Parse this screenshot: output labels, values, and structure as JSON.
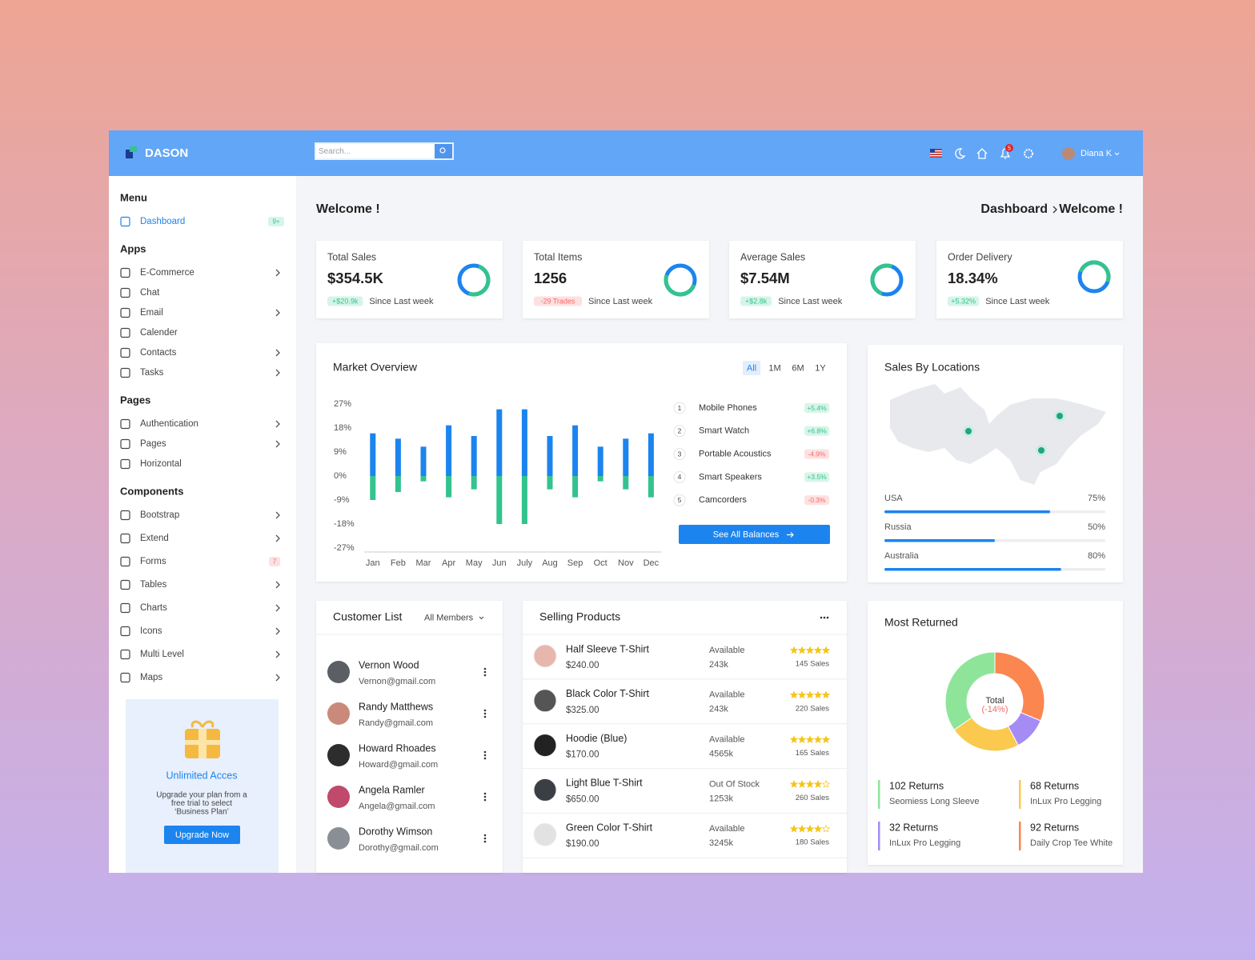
{
  "header": {
    "brand": "DASON",
    "search_placeholder": "Search...",
    "notifications": "5",
    "user": "Diana K"
  },
  "sidebar": {
    "sections": [
      {
        "title": "Menu",
        "items": [
          {
            "label": "Dashboard",
            "badge": "9+",
            "active": true
          }
        ]
      },
      {
        "title": "Apps",
        "items": [
          {
            "label": "E-Commerce",
            "submenu": true
          },
          {
            "label": "Chat"
          },
          {
            "label": "Email",
            "submenu": true
          },
          {
            "label": "Calender"
          },
          {
            "label": "Contacts",
            "submenu": true
          },
          {
            "label": "Tasks",
            "submenu": true
          }
        ]
      },
      {
        "title": "Pages",
        "items": [
          {
            "label": "Authentication",
            "submenu": true
          },
          {
            "label": "Pages",
            "submenu": true
          },
          {
            "label": "Horizontal"
          }
        ]
      },
      {
        "title": "Components",
        "items": [
          {
            "label": "Bootstrap",
            "submenu": true
          },
          {
            "label": "Extend",
            "submenu": true
          },
          {
            "label": "Forms",
            "badge": "7"
          },
          {
            "label": "Tables",
            "submenu": true
          },
          {
            "label": "Charts",
            "submenu": true
          },
          {
            "label": "Icons",
            "submenu": true
          },
          {
            "label": "Multi Level",
            "submenu": true
          },
          {
            "label": "Maps",
            "submenu": true
          }
        ]
      }
    ],
    "promo": {
      "title": "Unlimited Acces",
      "text": [
        "Upgrade your plan from a",
        "free trial to select",
        "‘Business Plan’"
      ],
      "button": "Upgrade Now"
    }
  },
  "page": {
    "title": "Welcome !",
    "breadcrumb": [
      "Dashboard",
      "Welcome !"
    ]
  },
  "stats": [
    {
      "title": "Total Sales",
      "value": "$354.5K",
      "change": "+$20.9k",
      "note": "Since Last week"
    },
    {
      "title": "Total Items",
      "value": "1256",
      "change": "-29 Trades",
      "note": "Since Last week"
    },
    {
      "title": "Average Sales",
      "value": "$7.54M",
      "change": "+$2.8k",
      "note": "Since Last week"
    },
    {
      "title": "Order Delivery",
      "value": "18.34%",
      "change": "+5.32%",
      "note": "Since Last week"
    }
  ],
  "market": {
    "ranges": [
      {
        "label": "All",
        "active": true
      },
      {
        "label": "1M"
      },
      {
        "label": "6M"
      },
      {
        "label": "1Y"
      }
    ],
    "products": [
      {
        "rank": 1,
        "name": "Mobile Phones",
        "change": "+5.4%"
      },
      {
        "rank": 2,
        "name": "Smart Watch",
        "change": "+6.8%"
      },
      {
        "rank": 3,
        "name": "Portable Acoustics",
        "change": "-4.9%"
      },
      {
        "rank": 4,
        "name": "Smart Speakers",
        "change": "+3.5%"
      },
      {
        "rank": 5,
        "name": "Camcorders",
        "change": "-0.3%"
      }
    ],
    "button": "See All Balances"
  },
  "chart_data": [
    {
      "type": "bar",
      "title": "Market Overview",
      "stacked": true,
      "categories": [
        "Jan",
        "Feb",
        "Mar",
        "Apr",
        "May",
        "Jun",
        "July",
        "Aug",
        "Sep",
        "Oct",
        "Nov",
        "Dec"
      ],
      "series": [
        {
          "color": "#1c84ee",
          "values": [
            16,
            14,
            11,
            19,
            15,
            25,
            25,
            15,
            19,
            11,
            14,
            16
          ]
        },
        {
          "color": "#33c38e",
          "values": [
            -9,
            -6,
            -2,
            -8,
            -5,
            -18,
            -18,
            -5,
            -8,
            -2,
            -5,
            -8
          ]
        }
      ],
      "ylim": [
        -27,
        27
      ],
      "yticks": [
        {
          "value": 27,
          "label": "27%"
        },
        {
          "value": 18,
          "label": "18%"
        },
        {
          "value": 9,
          "label": "9%"
        },
        {
          "value": 0,
          "label": "0%"
        },
        {
          "value": -9,
          "label": "-9%"
        },
        {
          "value": -18,
          "label": "-18%"
        },
        {
          "value": -27,
          "label": "-27%"
        }
      ]
    },
    {
      "type": "progress",
      "title": "Sales By Locations",
      "categories": [
        "USA",
        "Russia",
        "Australia"
      ],
      "values": [
        75,
        50,
        80
      ],
      "value_labels": [
        "75%",
        "50%",
        "80%"
      ],
      "xlim": [
        0,
        100
      ],
      "color": "#1c84ee"
    },
    {
      "type": "donut",
      "title": "Most Returned",
      "center_label": "Total",
      "center_value": "(-14%)",
      "categories": [
        "Seomiess Long Sleeve",
        "InLux Pro Legging",
        "InLux Pro Legging",
        "Daily Crop Tee White"
      ],
      "values": [
        102,
        68,
        32,
        92
      ],
      "value_labels": [
        "102 Returns",
        "68 Returns",
        "32 Returns",
        "92 Returns"
      ],
      "colors": [
        "#8ee59a",
        "#fbc94d",
        "#a58cf5",
        "#fb8650"
      ]
    }
  ],
  "customers": {
    "title": "Customer List",
    "filter": "All Members",
    "rows": [
      {
        "name": "Vernon Wood",
        "email": "Vernon@gmail.com"
      },
      {
        "name": "Randy Matthews",
        "email": "Randy@gmail.com"
      },
      {
        "name": "Howard Rhoades",
        "email": "Howard@gmail.com"
      },
      {
        "name": "Angela Ramler",
        "email": "Angela@gmail.com"
      },
      {
        "name": "Dorothy Wimson",
        "email": "Dorothy@gmail.com"
      }
    ]
  },
  "selling": {
    "title": "Selling Products",
    "rows": [
      {
        "name": "Half Sleeve T-Shirt",
        "price": "$240.00",
        "status": "Available",
        "stock": "243k",
        "rating": 5,
        "sales": "145 Sales"
      },
      {
        "name": "Black Color T-Shirt",
        "price": "$325.00",
        "status": "Available",
        "stock": "243k",
        "rating": 5,
        "sales": "220 Sales"
      },
      {
        "name": "Hoodie (Blue)",
        "price": "$170.00",
        "status": "Available",
        "stock": "4565k",
        "rating": 5,
        "sales": "165 Sales"
      },
      {
        "name": "Light Blue T-Shirt",
        "price": "$650.00",
        "status": "Out Of Stock",
        "stock": "1253k",
        "rating": 4,
        "sales": "260 Sales"
      },
      {
        "name": "Green Color T-Shirt",
        "price": "$190.00",
        "status": "Available",
        "stock": "3245k",
        "rating": 4,
        "sales": "180 Sales"
      }
    ]
  }
}
